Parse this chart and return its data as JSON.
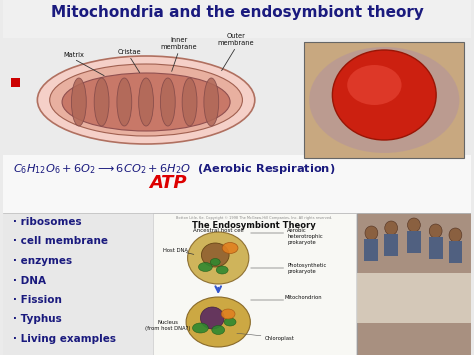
{
  "title": "Mitochondria and the endosymbiont theory",
  "title_color": "#1a1a7e",
  "title_fontsize": 11,
  "bg_color": "#ebebeb",
  "eq_line1": "C",
  "eq_subscripts": "6",
  "atp_text": "ATP",
  "atp_color": "#dd0000",
  "bullet_items": [
    "· ribosomes",
    "· cell membrane",
    "· enzymes",
    "· DNA",
    "· Fission",
    "· Typhus",
    "· Living examples"
  ],
  "bullet_color": "#1a1a7e",
  "bullet_fontsize": 7.5,
  "red_square_color": "#cc0000",
  "equation_color": "#1a1a7e",
  "equation_fontsize": 8,
  "endosymbiont_title": "The Endosymbiont Theory",
  "endo_labels": [
    [
      "Ancestral host cell",
      225,
      218
    ],
    [
      "Host DNA",
      178,
      243
    ],
    [
      "Aerobic\nheterotrophic\nprokaryote",
      306,
      228
    ],
    [
      "Photosynthetic\nprokaryote",
      306,
      268
    ],
    [
      "Mitochondrion",
      306,
      298
    ],
    [
      "Nucleus\n(from host DNA?)",
      196,
      316
    ],
    [
      "Chloroplast",
      275,
      338
    ]
  ],
  "mito_bg": "#f5f0f0",
  "top_strip_color": "#dcdcdc",
  "white_strip": "#f8f8f8"
}
